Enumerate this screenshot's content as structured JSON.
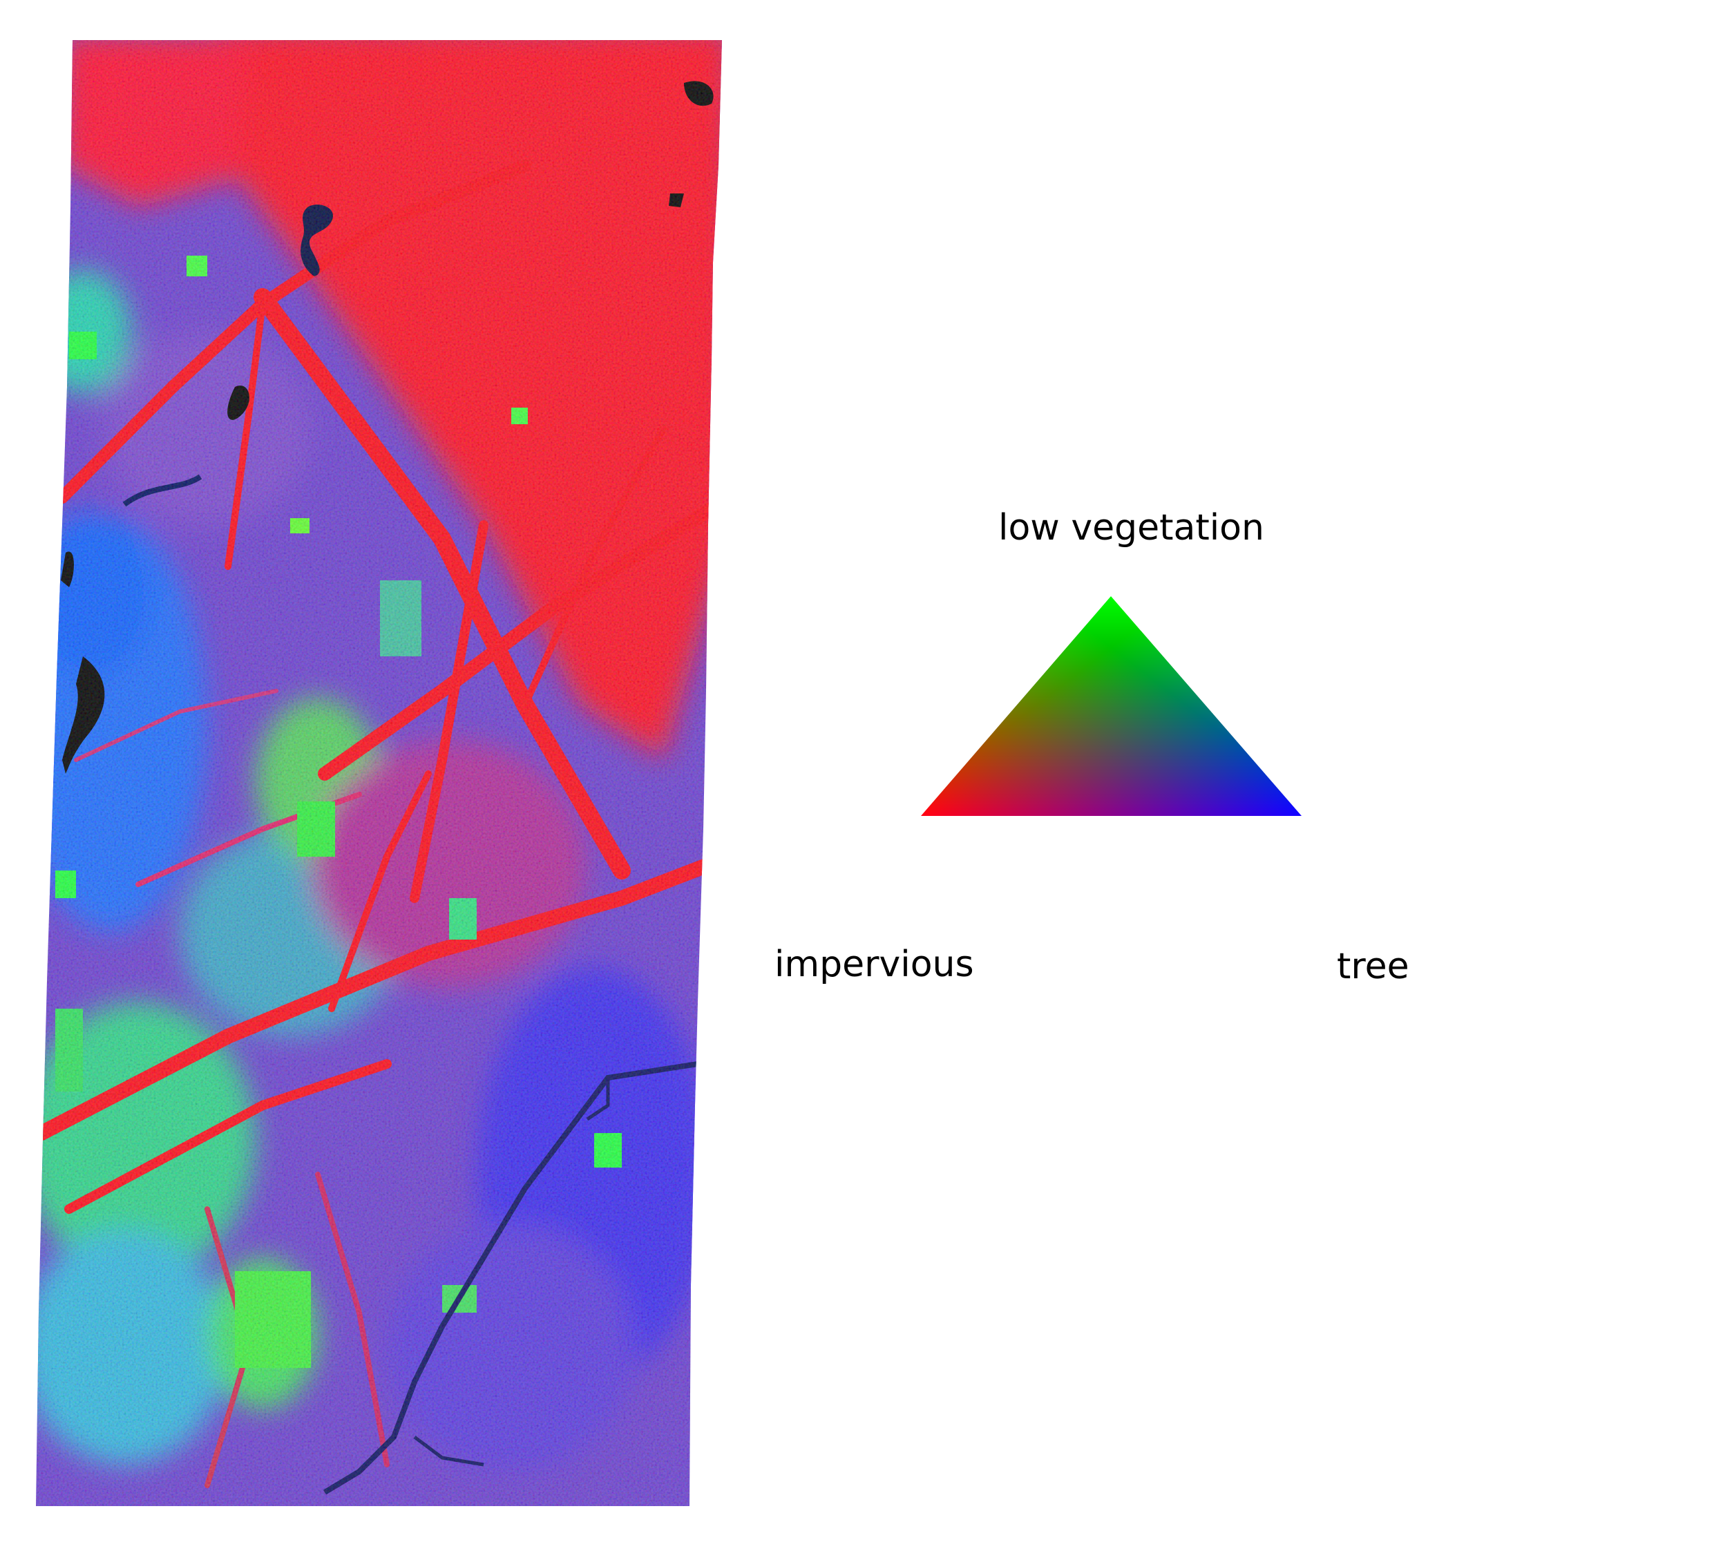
{
  "legend": {
    "top_label": "low vegetation",
    "left_label": "impervious",
    "right_label": "tree"
  },
  "colors": {
    "impervious": "#ff0000",
    "low_vegetation": "#00ff00",
    "tree": "#0000ff",
    "water": "#000000",
    "background": "#ffffff"
  }
}
